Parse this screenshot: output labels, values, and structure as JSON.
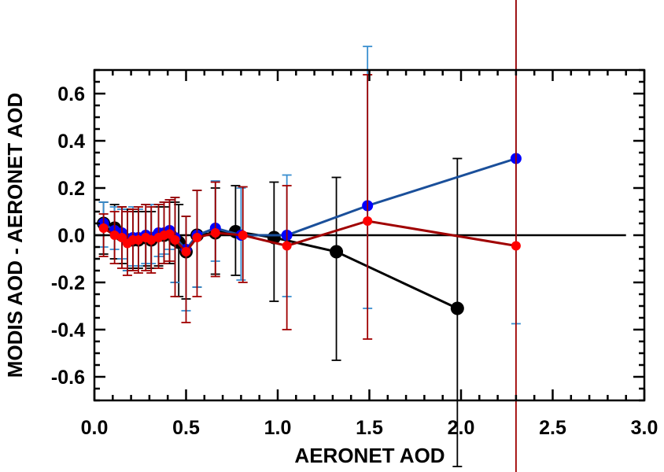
{
  "chart_data": {
    "type": "line",
    "title": "",
    "xlabel": "AERONET AOD",
    "ylabel": "MODIS AOD - AERONET AOD",
    "xlim": [
      0,
      3.0
    ],
    "ylim": [
      -0.7,
      0.7
    ],
    "x_ticks": [
      "0.0",
      "0.5",
      "1.0",
      "1.5",
      "2.0",
      "2.5",
      "3.0"
    ],
    "y_ticks": [
      "-0.6",
      "-0.4",
      "-0.2",
      "0.0",
      "0.2",
      "0.4",
      "0.6"
    ],
    "reference_line": {
      "y": 0.0,
      "x_range": [
        0,
        2.9
      ],
      "color": "#000000"
    },
    "grid": false,
    "legend": "none",
    "series": [
      {
        "marker_color": "#000000",
        "line_color": "#000000",
        "error_color": "#000000",
        "marker": "large-circle",
        "x": [
          0.05,
          0.11,
          0.15,
          0.18,
          0.21,
          0.24,
          0.28,
          0.31,
          0.35,
          0.38,
          0.41,
          0.44,
          0.46,
          0.5,
          0.56,
          0.66,
          0.77,
          0.98,
          1.32,
          1.98
        ],
        "y": [
          0.05,
          0.03,
          0.0,
          -0.02,
          -0.02,
          -0.02,
          -0.01,
          -0.02,
          0.0,
          0.0,
          0.01,
          -0.02,
          -0.03,
          -0.07,
          0.0,
          0.01,
          0.015,
          -0.01,
          -0.07,
          -0.31
        ],
        "y_low": [
          -0.08,
          -0.1,
          -0.12,
          -0.15,
          -0.14,
          -0.14,
          -0.13,
          -0.14,
          -0.13,
          -0.12,
          -0.12,
          -0.2,
          -0.26,
          -0.27,
          -0.22,
          -0.165,
          -0.17,
          -0.28,
          -0.53,
          -0.98
        ],
        "y_high": [
          0.14,
          0.13,
          0.12,
          0.11,
          0.1,
          0.1,
          0.1,
          0.1,
          0.12,
          0.12,
          0.14,
          0.14,
          0.13,
          0.08,
          0.19,
          0.2,
          0.21,
          0.225,
          0.245,
          0.325
        ]
      },
      {
        "marker_color": "#0000ff",
        "line_color": "#1a4f9a",
        "error_color": "#3a8fd0",
        "marker": "circle",
        "x": [
          0.05,
          0.11,
          0.15,
          0.18,
          0.21,
          0.24,
          0.28,
          0.31,
          0.35,
          0.38,
          0.41,
          0.44,
          0.5,
          0.56,
          0.66,
          0.8,
          1.05,
          1.49,
          2.3
        ],
        "y": [
          0.05,
          0.02,
          0.01,
          -0.02,
          -0.01,
          -0.01,
          0.0,
          -0.01,
          0.01,
          0.01,
          0.02,
          -0.01,
          -0.06,
          0.0,
          0.03,
          0.0,
          0.0,
          0.125,
          0.325
        ],
        "y_low": [
          -0.05,
          -0.06,
          -0.1,
          -0.15,
          -0.13,
          -0.13,
          -0.12,
          -0.12,
          -0.09,
          -0.08,
          -0.06,
          -0.2,
          -0.32,
          -0.22,
          -0.11,
          -0.19,
          -0.26,
          -0.31,
          -0.375
        ],
        "y_high": [
          0.14,
          0.12,
          0.11,
          0.1,
          0.12,
          0.11,
          0.13,
          0.13,
          0.13,
          0.14,
          0.15,
          0.16,
          0.08,
          0.19,
          0.23,
          0.2,
          0.255,
          0.8,
          1.03
        ]
      },
      {
        "marker_color": "#ff0000",
        "line_color": "#a00000",
        "error_color": "#a00000",
        "marker": "small-circle",
        "x": [
          0.05,
          0.11,
          0.15,
          0.18,
          0.21,
          0.24,
          0.28,
          0.31,
          0.35,
          0.38,
          0.41,
          0.44,
          0.5,
          0.56,
          0.66,
          0.81,
          1.05,
          1.49,
          2.3
        ],
        "y": [
          0.03,
          0.0,
          -0.01,
          -0.035,
          -0.02,
          -0.02,
          -0.01,
          -0.02,
          -0.01,
          0.0,
          0.005,
          -0.02,
          -0.07,
          -0.01,
          0.01,
          0.0,
          -0.045,
          0.06,
          -0.045
        ],
        "y_low": [
          -0.09,
          -0.12,
          -0.14,
          -0.17,
          -0.15,
          -0.16,
          -0.15,
          -0.16,
          -0.14,
          -0.12,
          -0.11,
          -0.26,
          -0.37,
          -0.26,
          -0.175,
          -0.2,
          -0.4,
          -0.44,
          -1.1
        ],
        "y_high": [
          0.09,
          0.1,
          0.12,
          0.1,
          0.11,
          0.12,
          0.13,
          0.12,
          0.13,
          0.14,
          0.15,
          0.16,
          0.08,
          0.19,
          0.225,
          0.205,
          0.21,
          0.68,
          1.1
        ]
      }
    ]
  }
}
